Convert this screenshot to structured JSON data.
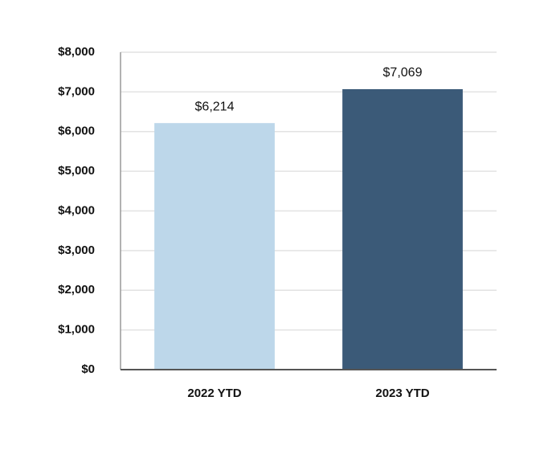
{
  "chart_data": {
    "type": "bar",
    "categories": [
      "2022 YTD",
      "2023 YTD"
    ],
    "values": [
      6214,
      7069
    ],
    "value_labels": [
      "$6,214",
      "$7,069"
    ],
    "colors": [
      "#bdd7ea",
      "#3b5a78"
    ],
    "ylim": [
      0,
      8000
    ],
    "yticks": [
      {
        "value": 0,
        "label": "$0"
      },
      {
        "value": 1000,
        "label": "$1,000"
      },
      {
        "value": 2000,
        "label": "$2,000"
      },
      {
        "value": 3000,
        "label": "$3,000"
      },
      {
        "value": 4000,
        "label": "$4,000"
      },
      {
        "value": 5000,
        "label": "$5,000"
      },
      {
        "value": 6000,
        "label": "$6,000"
      },
      {
        "value": 7000,
        "label": "$7,000"
      },
      {
        "value": 8000,
        "label": "$8,000"
      }
    ],
    "grid": true
  }
}
